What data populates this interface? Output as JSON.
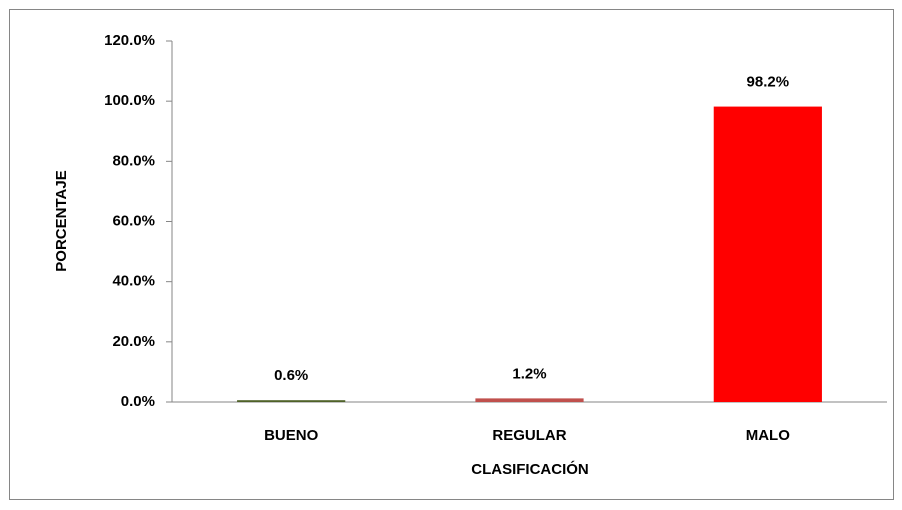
{
  "chart_data": {
    "type": "bar",
    "x_label": "CLASIFICACIÓN",
    "y_label": "PORCENTAJE",
    "categories": [
      "BUENO",
      "REGULAR",
      "MALO"
    ],
    "values": [
      0.6,
      1.2,
      98.2
    ],
    "value_labels": [
      "0.6%",
      "1.2%",
      "98.2%"
    ],
    "colors": [
      "#4f6228",
      "#c0504d",
      "#ff0000"
    ],
    "ylim": [
      0,
      120
    ],
    "yticks": [
      {
        "value": 0,
        "label": "0.0%"
      },
      {
        "value": 20,
        "label": "20.0%"
      },
      {
        "value": 40,
        "label": "40.0%"
      },
      {
        "value": 60,
        "label": "60.0%"
      },
      {
        "value": 80,
        "label": "80.0%"
      },
      {
        "value": 100,
        "label": "100.0%"
      },
      {
        "value": 120,
        "label": "120.0%"
      }
    ],
    "grid": false
  }
}
